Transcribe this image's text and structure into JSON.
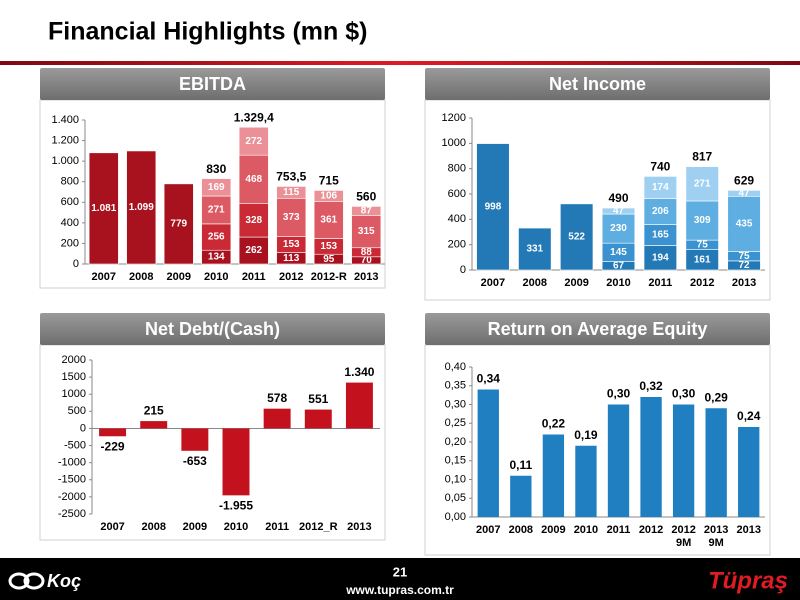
{
  "header": {
    "title": "Financial Highlights (mn $)"
  },
  "footer": {
    "page": "21",
    "url": "www.tupras.com.tr",
    "left_logo": "Koç",
    "right_logo": "Tüpraş"
  },
  "chart_data": [
    {
      "type": "stacked_bar",
      "title": "EBITDA",
      "categories": [
        "2007",
        "2008",
        "2009",
        "2010",
        "2011",
        "2012",
        "2012-R",
        "2013"
      ],
      "series": [
        {
          "color": "#a8121f",
          "values": [
            1081,
            1099,
            779,
            134,
            262,
            113,
            95,
            70
          ],
          "value_labels": [
            "1.081",
            "1.099",
            "779",
            "134",
            "262",
            "113",
            "95",
            "70"
          ]
        },
        {
          "color": "#c92a35",
          "values": [
            null,
            null,
            null,
            256,
            328,
            153,
            153,
            88
          ]
        },
        {
          "color": "#dc5a63",
          "values": [
            null,
            null,
            null,
            271,
            468,
            373,
            361,
            315
          ]
        },
        {
          "color": "#eb9097",
          "values": [
            null,
            null,
            null,
            169,
            272,
            115,
            106,
            87
          ]
        }
      ],
      "totals": [
        null,
        null,
        null,
        830,
        1329.4,
        753.5,
        715,
        560
      ],
      "total_labels": [
        null,
        null,
        null,
        "830",
        "1.329,4",
        "753,5",
        "715",
        "560"
      ],
      "ylim": [
        0,
        1400
      ],
      "yticks": [
        0,
        200,
        400,
        600,
        800,
        {
          "value": 1000,
          "label": "1.000"
        },
        {
          "value": 1200,
          "label": "1.200"
        },
        {
          "value": 1400,
          "label": "1.400"
        }
      ],
      "grid": false
    },
    {
      "type": "stacked_bar",
      "title": "Net Income",
      "categories": [
        "2007",
        "2008",
        "2009",
        "2010",
        "2011",
        "2012",
        "2013"
      ],
      "series": [
        {
          "color": "#2279b5",
          "values": [
            998,
            331,
            522,
            67,
            194,
            161,
            72
          ]
        },
        {
          "color": "#3a93d0",
          "values": [
            null,
            null,
            null,
            145,
            165,
            75,
            75
          ]
        },
        {
          "color": "#5eaee2",
          "values": [
            null,
            null,
            null,
            230,
            206,
            309,
            435
          ]
        },
        {
          "color": "#9fd0f1",
          "values": [
            null,
            null,
            null,
            47,
            174,
            271,
            47
          ]
        }
      ],
      "totals": [
        null,
        null,
        null,
        490,
        740,
        817,
        629
      ],
      "ylim": [
        0,
        1200
      ],
      "yticks": [
        0,
        200,
        400,
        600,
        800,
        1000,
        1200
      ],
      "grid": false
    },
    {
      "type": "bar",
      "title": "Net Debt/(Cash)",
      "categories": [
        "2007",
        "2008",
        "2009",
        "2010",
        "2011",
        "2012_R",
        "2013"
      ],
      "values": [
        -229,
        215,
        -653,
        -1955,
        578,
        551,
        1340
      ],
      "value_labels": [
        "-229",
        "215",
        "-653",
        "-1.955",
        "578",
        "551",
        "1.340"
      ],
      "color": "#c3121e",
      "ylim": [
        -2500,
        2000
      ],
      "yticks": [
        -2500,
        -2000,
        -1500,
        -1000,
        -500,
        0,
        500,
        1000,
        1500,
        2000
      ],
      "grid": false
    },
    {
      "type": "bar",
      "title": "Return on Average Equity",
      "categories": [
        "2007",
        "2008",
        "2009",
        "2010",
        "2011",
        "2012",
        "2012 9M",
        "2013 9M",
        "2013"
      ],
      "values": [
        0.34,
        0.11,
        0.22,
        0.19,
        0.3,
        0.32,
        0.3,
        0.29,
        0.24
      ],
      "value_labels": [
        "0,34",
        "0,11",
        "0,22",
        "0,19",
        "0,30",
        "0,32",
        "0,30",
        "0,29",
        "0,24"
      ],
      "color": "#1f7fc0",
      "ylim": [
        0,
        0.4
      ],
      "yticks": [
        {
          "value": 0,
          "label": "0,00"
        },
        {
          "value": 0.05,
          "label": "0,05"
        },
        {
          "value": 0.1,
          "label": "0,10"
        },
        {
          "value": 0.15,
          "label": "0,15"
        },
        {
          "value": 0.2,
          "label": "0,20"
        },
        {
          "value": 0.25,
          "label": "0,25"
        },
        {
          "value": 0.3,
          "label": "0,30"
        },
        {
          "value": 0.35,
          "label": "0,35"
        },
        {
          "value": 0.4,
          "label": "0,40"
        }
      ],
      "grid": false
    }
  ]
}
